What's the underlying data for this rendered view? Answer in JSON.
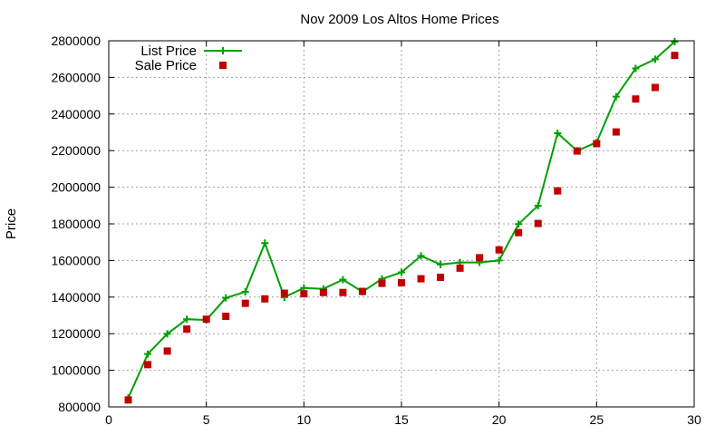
{
  "chart_data": {
    "type": "line",
    "title": "Nov 2009 Los Altos Home Prices",
    "xlabel": "",
    "ylabel": "Price",
    "xlim": [
      0,
      30
    ],
    "ylim": [
      800000,
      2800000
    ],
    "x_ticks": [
      0,
      5,
      10,
      15,
      20,
      25,
      30
    ],
    "y_ticks": [
      800000,
      1000000,
      1200000,
      1400000,
      1600000,
      1800000,
      2000000,
      2200000,
      2400000,
      2600000,
      2800000
    ],
    "x_tick_labels": [
      "0",
      "5",
      "10",
      "15",
      "20",
      "25",
      "30"
    ],
    "y_tick_labels": [
      "800000",
      "1000000",
      "1200000",
      "1400000",
      "1600000",
      "1800000",
      "2000000",
      "2200000",
      "2400000",
      "2600000",
      "2800000"
    ],
    "grid": true,
    "legend_position": "top-left",
    "x": [
      1,
      2,
      3,
      4,
      5,
      6,
      7,
      8,
      9,
      10,
      11,
      12,
      13,
      14,
      15,
      16,
      17,
      18,
      19,
      20,
      21,
      22,
      23,
      24,
      25,
      26,
      27,
      28,
      29
    ],
    "series": [
      {
        "name": "List Price",
        "style": "linespoints",
        "marker": "plus",
        "color": "#00a000",
        "values": [
          849000,
          1089000,
          1199000,
          1279000,
          1275000,
          1395000,
          1429000,
          1695000,
          1399000,
          1450000,
          1445000,
          1495000,
          1429000,
          1499000,
          1535000,
          1625000,
          1578000,
          1589000,
          1589000,
          1600000,
          1799000,
          1899000,
          2295000,
          2199000,
          2245000,
          2495000,
          2649000,
          2699000,
          2795000
        ]
      },
      {
        "name": "Sale Price",
        "style": "points",
        "marker": "square",
        "color": "#c00000",
        "values": [
          838000,
          1031000,
          1105000,
          1225000,
          1279000,
          1295000,
          1366000,
          1390000,
          1421000,
          1418000,
          1425000,
          1425000,
          1431000,
          1475000,
          1478000,
          1500000,
          1508000,
          1558000,
          1615000,
          1658000,
          1752000,
          1802000,
          1980000,
          2198000,
          2238000,
          2302000,
          2482000,
          2545000,
          2720000
        ]
      }
    ]
  }
}
